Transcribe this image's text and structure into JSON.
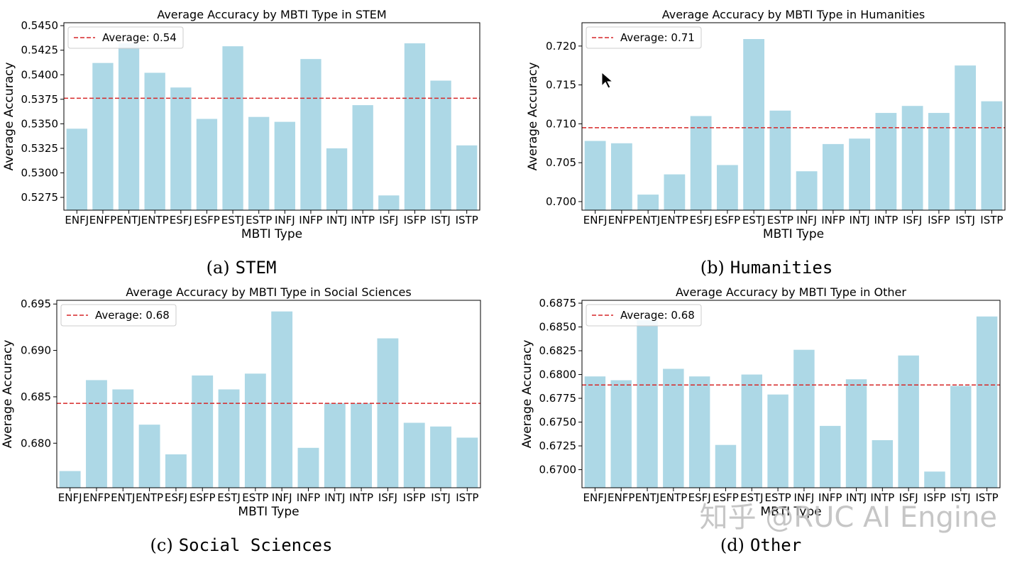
{
  "chart_data": [
    {
      "type": "bar",
      "title": "Average Accuracy by MBTI Type in STEM",
      "xlabel": "MBTI Type",
      "ylabel": "Average Accuracy",
      "categories": [
        "ENFJ",
        "ENFP",
        "ENTJ",
        "ENTP",
        "ESFJ",
        "ESFP",
        "ESTJ",
        "ESTP",
        "INFJ",
        "INFP",
        "INTJ",
        "INTP",
        "ISFJ",
        "ISFP",
        "ISTJ",
        "ISTP"
      ],
      "values": [
        0.5345,
        0.5412,
        0.5432,
        0.5402,
        0.5387,
        0.5355,
        0.5429,
        0.5357,
        0.5352,
        0.5416,
        0.5325,
        0.5369,
        0.5277,
        0.5432,
        0.5394,
        0.5328
      ],
      "average": 0.5376,
      "ylim": [
        0.5262,
        0.5453
      ],
      "yticks": [
        0.5275,
        0.53,
        0.5325,
        0.535,
        0.5375,
        0.54,
        0.5425,
        0.545
      ],
      "ytick_labels": [
        "0.5275",
        "0.5300",
        "0.5325",
        "0.5350",
        "0.5375",
        "0.5400",
        "0.5425",
        "0.5450"
      ],
      "legend": "Average: 0.54",
      "legend_position": "top-left",
      "caption_label": "(a)",
      "caption_name": "STEM"
    },
    {
      "type": "bar",
      "title": "Average Accuracy by MBTI Type in Humanities",
      "xlabel": "MBTI Type",
      "ylabel": "Average Accuracy",
      "categories": [
        "ENFJ",
        "ENFP",
        "ENTJ",
        "ENTP",
        "ESFJ",
        "ESFP",
        "ESTJ",
        "ESTP",
        "INFJ",
        "INFP",
        "INTJ",
        "INTP",
        "ISFJ",
        "ISFP",
        "ISTJ",
        "ISTP"
      ],
      "values": [
        0.7078,
        0.7075,
        0.7009,
        0.7035,
        0.711,
        0.7047,
        0.7209,
        0.7117,
        0.7039,
        0.7074,
        0.7081,
        0.7114,
        0.7123,
        0.7114,
        0.7175,
        0.7129
      ],
      "average": 0.7095,
      "ylim": [
        0.6989,
        0.723
      ],
      "yticks": [
        0.7,
        0.705,
        0.71,
        0.715,
        0.72
      ],
      "ytick_labels": [
        "0.700",
        "0.705",
        "0.710",
        "0.715",
        "0.720"
      ],
      "legend": "Average: 0.71",
      "legend_position": "top-left",
      "caption_label": "(b)",
      "caption_name": "Humanities"
    },
    {
      "type": "bar",
      "title": "Average Accuracy by MBTI Type in Social Sciences",
      "xlabel": "MBTI Type",
      "ylabel": "Average Accuracy",
      "categories": [
        "ENFJ",
        "ENFP",
        "ENTJ",
        "ENTP",
        "ESFJ",
        "ESFP",
        "ESTJ",
        "ESTP",
        "INFJ",
        "INFP",
        "INTJ",
        "INTP",
        "ISFJ",
        "ISFP",
        "ISTJ",
        "ISTP"
      ],
      "values": [
        0.677,
        0.6868,
        0.6858,
        0.682,
        0.6788,
        0.6873,
        0.6858,
        0.6875,
        0.6942,
        0.6795,
        0.6843,
        0.6843,
        0.6913,
        0.6822,
        0.6818,
        0.6806
      ],
      "average": 0.6843,
      "ylim": [
        0.6752,
        0.6954
      ],
      "yticks": [
        0.68,
        0.685,
        0.69,
        0.695
      ],
      "ytick_labels": [
        "0.680",
        "0.685",
        "0.690",
        "0.695"
      ],
      "legend": "Average: 0.68",
      "legend_position": "top-left",
      "caption_label": "(c)",
      "caption_name": "Social Sciences"
    },
    {
      "type": "bar",
      "title": "Average Accuracy by MBTI Type in Other",
      "xlabel": "MBTI Type",
      "ylabel": "Average Accuracy",
      "categories": [
        "ENFJ",
        "ENFP",
        "ENTJ",
        "ENTP",
        "ESFJ",
        "ESFP",
        "ESTJ",
        "ESTP",
        "INFJ",
        "INFP",
        "INTJ",
        "INTP",
        "ISFJ",
        "ISFP",
        "ISTJ",
        "ISTP"
      ],
      "values": [
        0.6798,
        0.6794,
        0.6857,
        0.6806,
        0.6798,
        0.6726,
        0.68,
        0.6779,
        0.6826,
        0.6746,
        0.6795,
        0.6731,
        0.682,
        0.6698,
        0.6788,
        0.6861
      ],
      "average": 0.6789,
      "ylim": [
        0.6681,
        0.6878
      ],
      "yticks": [
        0.67,
        0.6725,
        0.675,
        0.6775,
        0.68,
        0.6825,
        0.685,
        0.6875
      ],
      "ytick_labels": [
        "0.6700",
        "0.6725",
        "0.6750",
        "0.6775",
        "0.6800",
        "0.6825",
        "0.6850",
        "0.6875"
      ],
      "legend": "Average: 0.68",
      "legend_position": "top-left",
      "caption_label": "(d)",
      "caption_name": "Other"
    }
  ],
  "colors": {
    "bar": "#add8e6",
    "average_line": "#d62728",
    "axes": "#000000"
  },
  "watermark": "知乎 @RUC AI Engine"
}
